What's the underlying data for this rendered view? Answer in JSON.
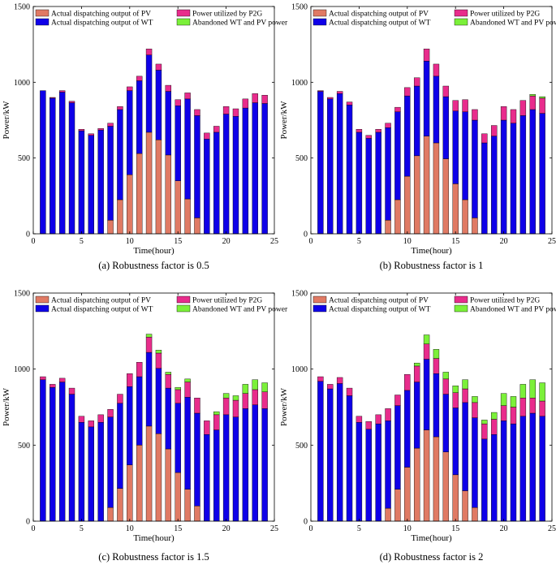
{
  "colors": {
    "pv": "#e07a64",
    "wt": "#0f00e8",
    "p2g": "#e82c8c",
    "ab": "#7bf039"
  },
  "legend_labels": {
    "pv": "Actual dispatching output of PV",
    "wt": "Actual dispatching output of WT",
    "p2g": "Power utilized by P2G",
    "ab": "Abandoned WT and PV power"
  },
  "chart_data": [
    {
      "type": "bar",
      "stacked": true,
      "caption": "(a)  Robustness factor is 0.5",
      "xlabel": "Time(hour)",
      "ylabel": "Power/kW",
      "xlim": [
        0,
        25
      ],
      "ylim": [
        0,
        1500
      ],
      "xticks": [
        "0",
        "5",
        "10",
        "15",
        "20",
        "25"
      ],
      "yticks": [
        "0",
        "500",
        "1000",
        "1500"
      ],
      "x": [
        1,
        2,
        3,
        4,
        5,
        6,
        7,
        8,
        9,
        10,
        11,
        12,
        13,
        14,
        15,
        16,
        17,
        18,
        19,
        20,
        21,
        22,
        23,
        24
      ],
      "series": [
        {
          "key": "pv",
          "values": [
            0,
            0,
            0,
            0,
            0,
            0,
            0,
            90,
            225,
            390,
            530,
            670,
            620,
            520,
            350,
            230,
            105,
            0,
            0,
            0,
            0,
            0,
            0,
            0
          ]
        },
        {
          "key": "wt",
          "values": [
            945,
            895,
            935,
            865,
            680,
            650,
            685,
            620,
            595,
            555,
            480,
            510,
            460,
            420,
            495,
            660,
            675,
            625,
            670,
            790,
            775,
            830,
            865,
            860
          ]
        },
        {
          "key": "p2g",
          "values": [
            0,
            5,
            10,
            10,
            10,
            10,
            10,
            20,
            20,
            25,
            30,
            40,
            40,
            40,
            40,
            40,
            40,
            40,
            40,
            50,
            50,
            60,
            60,
            55
          ]
        },
        {
          "key": "ab",
          "values": [
            0,
            0,
            0,
            0,
            0,
            0,
            0,
            0,
            0,
            0,
            0,
            0,
            0,
            0,
            0,
            0,
            0,
            0,
            0,
            0,
            0,
            0,
            0,
            0
          ]
        }
      ]
    },
    {
      "type": "bar",
      "stacked": true,
      "caption": "(b)  Robustness factor is 1",
      "xlabel": "Time(hour)",
      "ylabel": "Power/kW",
      "xlim": [
        0,
        25
      ],
      "ylim": [
        0,
        1500
      ],
      "xticks": [
        "0",
        "5",
        "10",
        "15",
        "20",
        "25"
      ],
      "yticks": [
        "0",
        "500",
        "1000",
        "1500"
      ],
      "x": [
        1,
        2,
        3,
        4,
        5,
        6,
        7,
        8,
        9,
        10,
        11,
        12,
        13,
        14,
        15,
        16,
        17,
        18,
        19,
        20,
        21,
        22,
        23,
        24
      ],
      "series": [
        {
          "key": "pv",
          "values": [
            0,
            0,
            0,
            0,
            0,
            0,
            0,
            90,
            225,
            380,
            515,
            645,
            600,
            495,
            330,
            225,
            105,
            0,
            0,
            0,
            0,
            0,
            0,
            0
          ]
        },
        {
          "key": "wt",
          "values": [
            940,
            890,
            925,
            850,
            670,
            630,
            670,
            610,
            580,
            530,
            460,
            495,
            440,
            410,
            480,
            580,
            645,
            600,
            645,
            750,
            730,
            780,
            820,
            795
          ]
        },
        {
          "key": "p2g",
          "values": [
            5,
            10,
            15,
            20,
            20,
            20,
            20,
            30,
            30,
            55,
            55,
            80,
            80,
            70,
            70,
            80,
            70,
            60,
            70,
            90,
            90,
            100,
            90,
            100
          ]
        },
        {
          "key": "ab",
          "values": [
            0,
            0,
            0,
            0,
            0,
            0,
            0,
            0,
            0,
            0,
            0,
            0,
            0,
            0,
            0,
            0,
            0,
            0,
            0,
            0,
            0,
            0,
            10,
            10
          ]
        }
      ]
    },
    {
      "type": "bar",
      "stacked": true,
      "caption": "(c)  Robustness factor is 1.5",
      "xlabel": "Time(hour)",
      "ylabel": "Power/kW",
      "xlim": [
        0,
        25
      ],
      "ylim": [
        0,
        1500
      ],
      "xticks": [
        "0",
        "5",
        "10",
        "15",
        "20",
        "25"
      ],
      "yticks": [
        "0",
        "500",
        "1000",
        "1500"
      ],
      "x": [
        1,
        2,
        3,
        4,
        5,
        6,
        7,
        8,
        9,
        10,
        11,
        12,
        13,
        14,
        15,
        16,
        17,
        18,
        19,
        20,
        21,
        22,
        23,
        24
      ],
      "series": [
        {
          "key": "pv",
          "values": [
            0,
            0,
            0,
            0,
            0,
            0,
            0,
            90,
            215,
            370,
            500,
            625,
            575,
            475,
            320,
            210,
            100,
            0,
            0,
            0,
            0,
            0,
            0,
            0
          ]
        },
        {
          "key": "wt",
          "values": [
            930,
            880,
            915,
            835,
            650,
            620,
            650,
            595,
            560,
            515,
            450,
            485,
            430,
            400,
            455,
            605,
            610,
            570,
            600,
            700,
            685,
            740,
            765,
            740
          ]
        },
        {
          "key": "p2g",
          "values": [
            20,
            20,
            25,
            40,
            40,
            40,
            50,
            50,
            60,
            85,
            95,
            100,
            100,
            90,
            90,
            100,
            100,
            90,
            100,
            110,
            110,
            100,
            100,
            110
          ]
        },
        {
          "key": "ab",
          "values": [
            0,
            0,
            0,
            0,
            0,
            0,
            0,
            0,
            0,
            0,
            0,
            20,
            20,
            15,
            15,
            20,
            0,
            0,
            20,
            30,
            30,
            60,
            65,
            60
          ]
        }
      ]
    },
    {
      "type": "bar",
      "stacked": true,
      "caption": "(d)  Robustness factor is 2",
      "xlabel": "Time(hour)",
      "ylabel": "Power/kW",
      "xlim": [
        0,
        25
      ],
      "ylim": [
        0,
        1500
      ],
      "xticks": [
        "0",
        "5",
        "10",
        "15",
        "20",
        "25"
      ],
      "yticks": [
        "0",
        "500",
        "1000",
        "1500"
      ],
      "x": [
        1,
        2,
        3,
        4,
        5,
        6,
        7,
        8,
        9,
        10,
        11,
        12,
        13,
        14,
        15,
        16,
        17,
        18,
        19,
        20,
        21,
        22,
        23,
        24
      ],
      "series": [
        {
          "key": "pv",
          "values": [
            0,
            0,
            0,
            0,
            0,
            0,
            0,
            85,
            210,
            355,
            480,
            600,
            555,
            455,
            305,
            200,
            90,
            0,
            0,
            0,
            0,
            0,
            0,
            0
          ]
        },
        {
          "key": "wt",
          "values": [
            920,
            870,
            905,
            825,
            650,
            605,
            640,
            575,
            550,
            505,
            435,
            465,
            415,
            380,
            440,
            580,
            590,
            540,
            570,
            660,
            640,
            690,
            710,
            690
          ]
        },
        {
          "key": "p2g",
          "values": [
            30,
            30,
            40,
            50,
            40,
            50,
            60,
            80,
            70,
            105,
            105,
            100,
            100,
            100,
            100,
            90,
            100,
            100,
            100,
            100,
            110,
            120,
            100,
            100
          ]
        },
        {
          "key": "ab",
          "values": [
            0,
            0,
            0,
            0,
            0,
            0,
            0,
            0,
            0,
            0,
            20,
            60,
            60,
            45,
            45,
            60,
            40,
            25,
            45,
            80,
            70,
            90,
            120,
            120
          ]
        }
      ]
    }
  ]
}
